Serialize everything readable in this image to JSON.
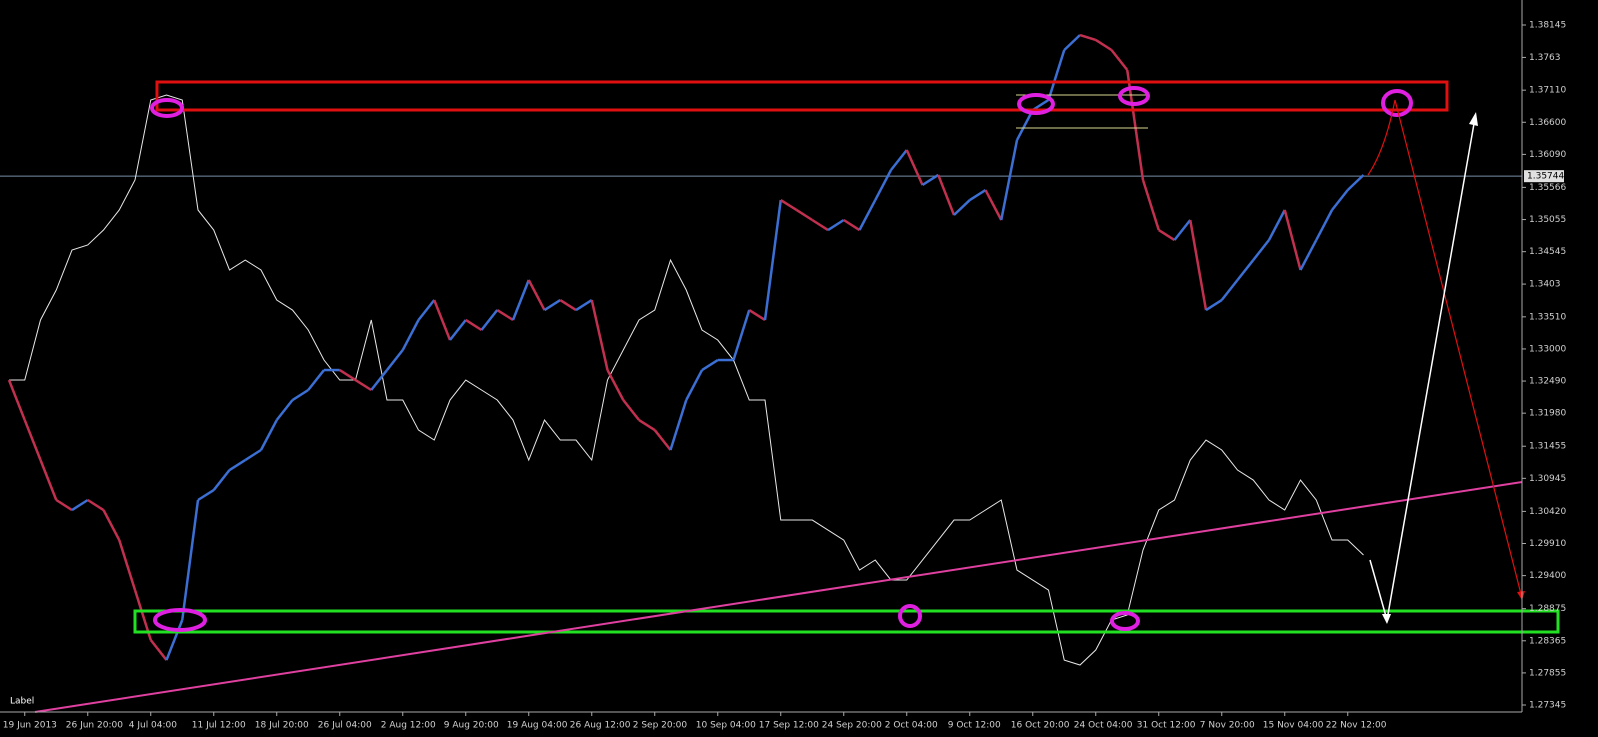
{
  "chart_data": {
    "type": "line",
    "annotation": "Label",
    "current_price": 1.35744,
    "categories": [
      null,
      "19 Jun 2013",
      null,
      null,
      null,
      "26 Jun 20:00",
      null,
      null,
      null,
      "4 Jul 04:00",
      null,
      null,
      null,
      "11 Jul 12:00",
      null,
      null,
      null,
      "18 Jul 20:00",
      null,
      null,
      null,
      "26 Jul 04:00",
      null,
      null,
      null,
      "2 Aug 12:00",
      null,
      null,
      null,
      "9 Aug 20:00",
      null,
      null,
      null,
      "19 Aug 04:00",
      null,
      null,
      null,
      "26 Aug 12:00",
      null,
      null,
      null,
      "2 Sep 20:00",
      null,
      null,
      null,
      "10 Sep 04:00",
      null,
      null,
      null,
      "17 Sep 12:00",
      null,
      null,
      null,
      "24 Sep 20:00",
      null,
      null,
      null,
      "2 Oct 04:00",
      null,
      null,
      null,
      "9 Oct 12:00",
      null,
      null,
      null,
      "16 Oct 20:00",
      null,
      null,
      null,
      "24 Oct 04:00",
      null,
      null,
      null,
      "31 Oct 12:00",
      null,
      null,
      null,
      "7 Nov 20:00",
      null,
      null,
      null,
      "15 Nov 04:00",
      null,
      null,
      null,
      "22 Nov 12:00",
      null
    ],
    "series": [
      {
        "color": "#e8e8e8",
        "values": [
          1.32506,
          1.32506,
          1.3346,
          1.33936,
          1.34571,
          1.34651,
          1.34889,
          1.35207,
          1.35683,
          1.36954,
          1.37033,
          1.36954,
          1.35207,
          1.34889,
          1.34254,
          1.34412,
          1.34254,
          1.33777,
          1.33618,
          1.33301,
          1.32824,
          1.32506,
          1.32506,
          1.3346,
          1.32189,
          1.32189,
          1.31712,
          1.31553,
          1.32189,
          1.32506,
          1.32348,
          1.32189,
          1.31871,
          1.31236,
          1.31871,
          1.31553,
          1.31553,
          1.31236,
          1.32506,
          1.32983,
          1.3346,
          1.33618,
          1.34412,
          1.33936,
          1.33301,
          1.33142,
          1.32824,
          1.32189,
          1.32189,
          1.30283,
          1.30283,
          1.30283,
          1.30124,
          1.29965,
          1.29489,
          1.29648,
          1.2933,
          1.2933,
          1.29648,
          1.29965,
          1.30283,
          1.30283,
          1.30442,
          1.30601,
          1.29489,
          1.2933,
          1.29171,
          1.28059,
          1.2798,
          1.28218,
          1.28695,
          1.28774,
          1.29806,
          1.30442,
          1.30601,
          1.31236,
          1.31553,
          1.31395,
          1.31077,
          1.30918,
          1.30601,
          1.30442,
          1.30918,
          1.30601,
          1.29965,
          1.29965,
          1.29727
        ]
      },
      {
        "color": "#3b6fd4",
        "down_color": "#c23050",
        "values": [
          1.32506,
          1.31871,
          1.31236,
          1.30601,
          1.30442,
          1.30601,
          1.30442,
          1.29965,
          1.29171,
          1.28377,
          1.28059,
          1.28695,
          1.30601,
          1.30759,
          1.31077,
          1.31236,
          1.31395,
          1.31871,
          1.32189,
          1.32348,
          1.32665,
          1.32665,
          1.32506,
          1.32348,
          1.32665,
          1.32983,
          1.3346,
          1.33777,
          1.33142,
          1.3346,
          1.33301,
          1.33618,
          1.3346,
          1.34095,
          1.33618,
          1.33777,
          1.33618,
          1.33777,
          1.32665,
          1.32189,
          1.31871,
          1.31712,
          1.31395,
          1.32189,
          1.32665,
          1.32824,
          1.32824,
          1.33618,
          1.3346,
          1.35365,
          1.35207,
          1.35048,
          1.34889,
          1.35048,
          1.34889,
          1.35365,
          1.35842,
          1.3616,
          1.35604,
          1.35763,
          1.35127,
          1.35365,
          1.35524,
          1.35048,
          1.36318,
          1.36795,
          1.36954,
          1.37748,
          1.37986,
          1.37907,
          1.37748,
          1.3743,
          1.35683,
          1.34889,
          1.3473,
          1.35048,
          1.33618,
          1.33777,
          1.34095,
          1.34412,
          1.3473,
          1.35207,
          1.34254,
          1.3473,
          1.35207,
          1.35524,
          1.35763
        ]
      }
    ],
    "ylim": [
      1.38542,
      1.27234
    ],
    "yticks": [
      1.38145,
      1.3763,
      {
        "value": 1.3711,
        "label": "1.37110"
      },
      {
        "value": 1.366,
        "label": "1.36600"
      },
      {
        "value": 1.3609,
        "label": "1.36090"
      },
      1.35566,
      1.35055,
      1.34545,
      1.3403,
      {
        "value": 1.3351,
        "label": "1.33510"
      },
      {
        "value": 1.33,
        "label": "1.33000"
      },
      {
        "value": 1.3249,
        "label": "1.32490"
      },
      {
        "value": 1.3198,
        "label": "1.31980"
      },
      1.31455,
      1.30945,
      {
        "value": 1.3042,
        "label": "1.30420"
      },
      {
        "value": 1.2991,
        "label": "1.29910"
      },
      {
        "value": 1.294,
        "label": "1.29400"
      },
      1.28875,
      1.28365,
      1.27855,
      1.27345
    ]
  }
}
